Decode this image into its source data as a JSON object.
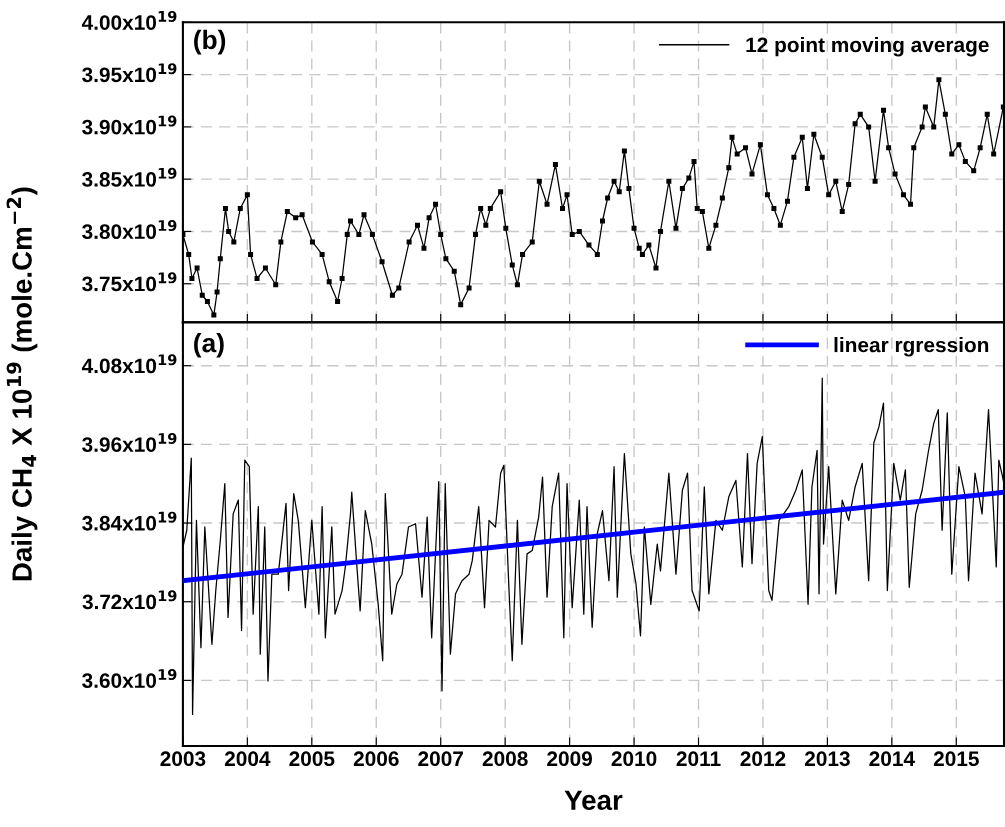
{
  "chart_data": [
    {
      "type": "line",
      "ylabel": "Daily CH$_{4}$ X 10$^{19}$ (mole.Cm$^{−2}$)",
      "annotations": [
        "(b)"
      ],
      "grid": true,
      "legend": "top right",
      "tick_labels": "y",
      "marker": "square",
      "line_style": "solid",
      "xlim": [
        2003,
        2015.74
      ],
      "xticks": [
        2003,
        2004,
        2005,
        2006,
        2007,
        2008,
        2009,
        2010,
        2011,
        2012,
        2013,
        2014,
        2015
      ],
      "ylim": [
        3.713e+19,
        4e+19
      ],
      "yticks": [
        {
          "value": 3.75e+19,
          "label": "3.75x10$^{19}$"
        },
        {
          "value": 3.8e+19,
          "label": "3.80x10$^{19}$"
        },
        {
          "value": 3.85e+19,
          "label": "3.85x10$^{19}$"
        },
        {
          "value": 3.9e+19,
          "label": "3.90x10$^{19}$"
        },
        {
          "value": 3.95e+19,
          "label": "3.95x10$^{19}$"
        },
        {
          "value": 4e+19,
          "label": "4.00x10$^{19}$"
        }
      ],
      "series": [
        {
          "name": "12 point moving average",
          "color": "#000000",
          "x": [
            2003.0,
            2003.09,
            2003.14,
            2003.22,
            2003.3,
            2003.38,
            2003.48,
            2003.53,
            2003.58,
            2003.66,
            2003.71,
            2003.79,
            2003.89,
            2004.0,
            2004.05,
            2004.15,
            2004.28,
            2004.44,
            2004.52,
            2004.62,
            2004.75,
            2004.85,
            2005.01,
            2005.16,
            2005.27,
            2005.4,
            2005.47,
            2005.55,
            2005.6,
            2005.73,
            2005.81,
            2005.94,
            2006.09,
            2006.25,
            2006.35,
            2006.51,
            2006.64,
            2006.74,
            2006.82,
            2006.92,
            2007.0,
            2007.08,
            2007.21,
            2007.31,
            2007.44,
            2007.54,
            2007.62,
            2007.7,
            2007.77,
            2007.93,
            2008.01,
            2008.11,
            2008.19,
            2008.27,
            2008.42,
            2008.53,
            2008.65,
            2008.78,
            2008.89,
            2008.96,
            2009.04,
            2009.15,
            2009.3,
            2009.43,
            2009.51,
            2009.59,
            2009.69,
            2009.77,
            2009.85,
            2009.92,
            2010.0,
            2010.08,
            2010.13,
            2010.23,
            2010.34,
            2010.41,
            2010.54,
            2010.65,
            2010.75,
            2010.85,
            2010.93,
            2010.98,
            2011.06,
            2011.16,
            2011.27,
            2011.37,
            2011.47,
            2011.52,
            2011.6,
            2011.73,
            2011.83,
            2011.96,
            2012.07,
            2012.17,
            2012.27,
            2012.38,
            2012.48,
            2012.61,
            2012.69,
            2012.79,
            2012.92,
            2013.02,
            2013.13,
            2013.23,
            2013.33,
            2013.43,
            2013.51,
            2013.64,
            2013.74,
            2013.87,
            2013.95,
            2014.05,
            2014.18,
            2014.29,
            2014.34,
            2014.47,
            2014.52,
            2014.65,
            2014.73,
            2014.83,
            2014.93,
            2015.04,
            2015.14,
            2015.27,
            2015.37,
            2015.48,
            2015.58,
            2015.73
          ],
          "values": [
            3.797e+19,
            3.778e+19,
            3.755e+19,
            3.765e+19,
            3.739e+19,
            3.733e+19,
            3.72e+19,
            3.742e+19,
            3.774e+19,
            3.822e+19,
            3.8e+19,
            3.79e+19,
            3.822e+19,
            3.835e+19,
            3.778e+19,
            3.755e+19,
            3.765e+19,
            3.749e+19,
            3.79e+19,
            3.819e+19,
            3.813e+19,
            3.816e+19,
            3.79e+19,
            3.778e+19,
            3.752e+19,
            3.733e+19,
            3.755e+19,
            3.797e+19,
            3.81e+19,
            3.797e+19,
            3.816e+19,
            3.797e+19,
            3.771e+19,
            3.739e+19,
            3.746e+19,
            3.79e+19,
            3.806e+19,
            3.784e+19,
            3.813e+19,
            3.826e+19,
            3.797e+19,
            3.774e+19,
            3.762e+19,
            3.73e+19,
            3.746e+19,
            3.797e+19,
            3.822e+19,
            3.806e+19,
            3.822e+19,
            3.838e+19,
            3.803e+19,
            3.768e+19,
            3.749e+19,
            3.778e+19,
            3.79e+19,
            3.848e+19,
            3.826e+19,
            3.864e+19,
            3.822e+19,
            3.835e+19,
            3.797e+19,
            3.8e+19,
            3.787e+19,
            3.778e+19,
            3.81e+19,
            3.832e+19,
            3.848e+19,
            3.838e+19,
            3.877e+19,
            3.841e+19,
            3.803e+19,
            3.784e+19,
            3.778e+19,
            3.787e+19,
            3.765e+19,
            3.8e+19,
            3.848e+19,
            3.803e+19,
            3.841e+19,
            3.851e+19,
            3.867e+19,
            3.822e+19,
            3.819e+19,
            3.784e+19,
            3.806e+19,
            3.832e+19,
            3.861e+19,
            3.89e+19,
            3.874e+19,
            3.88e+19,
            3.855e+19,
            3.883e+19,
            3.835e+19,
            3.822e+19,
            3.806e+19,
            3.829e+19,
            3.871e+19,
            3.89e+19,
            3.841e+19,
            3.893e+19,
            3.871e+19,
            3.835e+19,
            3.848e+19,
            3.819e+19,
            3.845e+19,
            3.903e+19,
            3.912e+19,
            3.9e+19,
            3.848e+19,
            3.916e+19,
            3.88e+19,
            3.855e+19,
            3.835e+19,
            3.826e+19,
            3.88e+19,
            3.9e+19,
            3.919e+19,
            3.9e+19,
            3.945e+19,
            3.912e+19,
            3.874e+19,
            3.883e+19,
            3.867e+19,
            3.858e+19,
            3.88e+19,
            3.912e+19,
            3.874e+19,
            3.919e+19
          ]
        }
      ]
    },
    {
      "type": "line",
      "xlabel": "Year",
      "annotations": [
        "(a)"
      ],
      "grid": true,
      "legend": "top right",
      "marker": "none",
      "line_style": "solid",
      "xlim": [
        2003,
        2015.74
      ],
      "xticks": [
        2003,
        2004,
        2005,
        2006,
        2007,
        2008,
        2009,
        2010,
        2011,
        2012,
        2013,
        2014,
        2015
      ],
      "ylim": [
        3.5e+19,
        4.146e+19
      ],
      "yticks": [
        {
          "value": 3.6e+19,
          "label": "3.60x10$^{19}$"
        },
        {
          "value": 3.72e+19,
          "label": "3.72x10$^{19}$"
        },
        {
          "value": 3.84e+19,
          "label": "3.84x10$^{19}$"
        },
        {
          "value": 3.96e+19,
          "label": "3.96x10$^{19}$"
        },
        {
          "value": 4.08e+19,
          "label": "4.08x10$^{19}$"
        }
      ],
      "series": [
        {
          "color": "#000000",
          "x": [
            2003.0,
            2003.06,
            2003.13,
            2003.15,
            2003.21,
            2003.28,
            2003.34,
            2003.45,
            2003.51,
            2003.58,
            2003.65,
            2003.7,
            2003.78,
            2003.86,
            2003.91,
            2003.96,
            2004.03,
            2004.09,
            2004.17,
            2004.2,
            2004.27,
            2004.32,
            2004.38,
            2004.48,
            2004.6,
            2004.64,
            2004.72,
            2004.79,
            2004.9,
            2005.0,
            2005.11,
            2005.16,
            2005.21,
            2005.31,
            2005.36,
            2005.47,
            2005.52,
            2005.6,
            2005.62,
            2005.7,
            2005.75,
            2005.83,
            2005.93,
            2006.03,
            2006.1,
            2006.14,
            2006.24,
            2006.32,
            2006.4,
            2006.5,
            2006.61,
            2006.71,
            2006.79,
            2006.86,
            2006.97,
            2007.02,
            2007.07,
            2007.15,
            2007.23,
            2007.33,
            2007.44,
            2007.49,
            2007.59,
            2007.68,
            2007.75,
            2007.85,
            2007.93,
            2007.98,
            2008.06,
            2008.11,
            2008.19,
            2008.26,
            2008.34,
            2008.42,
            2008.52,
            2008.58,
            2008.65,
            2008.73,
            2008.83,
            2008.91,
            2008.96,
            2009.04,
            2009.15,
            2009.22,
            2009.27,
            2009.35,
            2009.43,
            2009.51,
            2009.61,
            2009.69,
            2009.74,
            2009.85,
            2009.95,
            2010.03,
            2010.1,
            2010.16,
            2010.26,
            2010.36,
            2010.41,
            2010.54,
            2010.65,
            2010.75,
            2010.83,
            2010.9,
            2011.01,
            2011.09,
            2011.16,
            2011.27,
            2011.37,
            2011.47,
            2011.58,
            2011.68,
            2011.76,
            2011.83,
            2011.91,
            2011.99,
            2012.09,
            2012.14,
            2012.25,
            2012.4,
            2012.51,
            2012.61,
            2012.7,
            2012.76,
            2012.84,
            2012.87,
            2012.92,
            2012.94,
            2013.02,
            2013.13,
            2013.23,
            2013.33,
            2013.43,
            2013.54,
            2013.64,
            2013.72,
            2013.8,
            2013.87,
            2013.93,
            2014.03,
            2014.13,
            2014.21,
            2014.27,
            2014.37,
            2014.47,
            2014.57,
            2014.65,
            2014.72,
            2014.78,
            2014.86,
            2014.93,
            2015.04,
            2015.14,
            2015.19,
            2015.29,
            2015.4,
            2015.5,
            2015.62,
            2015.66,
            2015.73
          ],
          "values": [
            3.803e+19,
            3.829e+19,
            3.939e+19,
            3.548e+19,
            3.844e+19,
            3.65e+19,
            3.834e+19,
            3.655e+19,
            3.737e+19,
            3.813e+19,
            3.9e+19,
            3.696e+19,
            3.854e+19,
            3.875e+19,
            3.676e+19,
            3.936e+19,
            3.926e+19,
            3.701e+19,
            3.865e+19,
            3.64e+19,
            3.834e+19,
            3.599e+19,
            3.762e+19,
            3.762e+19,
            3.87e+19,
            3.737e+19,
            3.885e+19,
            3.844e+19,
            3.711e+19,
            3.844e+19,
            3.701e+19,
            3.865e+19,
            3.665e+19,
            3.834e+19,
            3.701e+19,
            3.737e+19,
            3.773e+19,
            3.854e+19,
            3.887e+19,
            3.773e+19,
            3.706e+19,
            3.859e+19,
            3.808e+19,
            3.716e+19,
            3.63e+19,
            3.885e+19,
            3.701e+19,
            3.747e+19,
            3.762e+19,
            3.834e+19,
            3.839e+19,
            3.727e+19,
            3.849e+19,
            3.665e+19,
            3.903e+19,
            3.584e+19,
            3.9e+19,
            3.64e+19,
            3.732e+19,
            3.752e+19,
            3.762e+19,
            3.783e+19,
            3.865e+19,
            3.711e+19,
            3.844e+19,
            3.834e+19,
            3.916e+19,
            3.928e+19,
            3.737e+19,
            3.63e+19,
            3.844e+19,
            3.655e+19,
            3.793e+19,
            3.798e+19,
            3.849e+19,
            3.91e+19,
            3.727e+19,
            3.865e+19,
            3.916e+19,
            3.665e+19,
            3.9e+19,
            3.711e+19,
            3.875e+19,
            3.701e+19,
            3.865e+19,
            3.681e+19,
            3.824e+19,
            3.859e+19,
            3.752e+19,
            3.926e+19,
            3.727e+19,
            3.946e+19,
            3.793e+19,
            3.747e+19,
            3.668e+19,
            3.834e+19,
            3.716e+19,
            3.808e+19,
            3.767e+19,
            3.916e+19,
            3.762e+19,
            3.89e+19,
            3.916e+19,
            3.737e+19,
            3.706e+19,
            3.895e+19,
            3.732e+19,
            3.844e+19,
            3.829e+19,
            3.88e+19,
            3.905e+19,
            3.773e+19,
            3.946e+19,
            3.778e+19,
            3.931e+19,
            3.972e+19,
            3.737e+19,
            3.722e+19,
            3.844e+19,
            3.865e+19,
            3.89e+19,
            3.921e+19,
            3.716e+19,
            3.895e+19,
            3.951e+19,
            3.732e+19,
            4.061e+19,
            3.808e+19,
            3.926e+19,
            3.732e+19,
            3.875e+19,
            3.844e+19,
            3.895e+19,
            3.931e+19,
            3.752e+19,
            3.962e+19,
            3.987e+19,
            4.023e+19,
            3.737e+19,
            3.931e+19,
            3.875e+19,
            3.921e+19,
            3.742e+19,
            3.854e+19,
            3.89e+19,
            3.951e+19,
            3.992e+19,
            4.013e+19,
            3.829e+19,
            4.008e+19,
            3.762e+19,
            3.926e+19,
            3.88e+19,
            3.752e+19,
            3.916e+19,
            3.854e+19,
            4.013e+19,
            3.773e+19,
            3.936e+19,
            3.905e+19
          ]
        },
        {
          "name": "linear rgression",
          "color": "#0000ff",
          "x": [
            2003,
            2015.74
          ],
          "values": [
            3.752e+19,
            3.887e+19
          ]
        }
      ]
    }
  ]
}
